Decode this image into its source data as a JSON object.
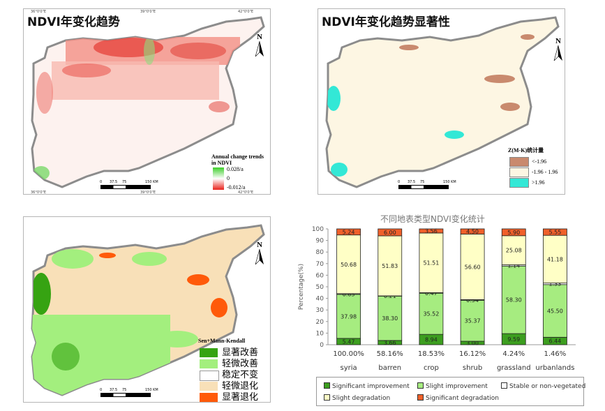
{
  "panels": {
    "trend": {
      "title": "NDVI年变化趋势",
      "legend_title": "Annual change trends in NDVI",
      "legend_max": "0.028/a",
      "legend_mid": "0",
      "legend_min": "-0.012/a"
    },
    "significance": {
      "title": "NDVI年变化趋势显著性",
      "legend_title": "Z(M-K)统计量",
      "legend_items": [
        "<-1.96",
        "-1.96 - 1.96",
        ">1.96"
      ],
      "colors": [
        "#c98a6e",
        "#fdf6e3",
        "#33e8d6"
      ]
    },
    "senmk": {
      "legend_title": "Sen+Mann-Kendall",
      "legend_items": [
        "显著改善",
        "轻微改善",
        "稳定不变",
        "轻微退化",
        "显著退化"
      ],
      "colors": [
        "#36a312",
        "#a3ef7e",
        "#ffffff",
        "#f8e0b8",
        "#ff5a0a"
      ]
    }
  },
  "map_common": {
    "north_label": "N",
    "scale_ticks": [
      "0",
      "37.5",
      "75",
      "150 KM"
    ],
    "lon_labels": [
      "36°0'0\"E",
      "39°0'0\"E",
      "42°0'0\"E"
    ],
    "lat_labels": [
      "36°0'0\"N",
      "33°0'0\"N"
    ]
  },
  "chart_data": {
    "type": "bar",
    "stacked": true,
    "title": "不同地表类型NDVI变化统计",
    "ylabel": "Percentage(%)",
    "ylim": [
      0,
      100
    ],
    "yticks": [
      0,
      10,
      20,
      30,
      40,
      50,
      60,
      70,
      80,
      90,
      100
    ],
    "categories": [
      "syria",
      "barren",
      "crop",
      "shrub",
      "grassland",
      "urbanlands"
    ],
    "category_shares": [
      "100.00%",
      "58.16%",
      "18.53%",
      "16.12%",
      "4.24%",
      "1.46%"
    ],
    "series": [
      {
        "name": "Significant improvement",
        "color": "#3c9e1f",
        "values": [
          5.47,
          3.66,
          8.94,
          3.0,
          9.59,
          6.44
        ],
        "labels": [
          "5.47",
          "3.66",
          "8.94",
          "3.00",
          "9.59",
          "6.44"
        ]
      },
      {
        "name": "Slight improvement",
        "color": "#a6ec80",
        "values": [
          37.98,
          38.3,
          35.52,
          35.37,
          58.3,
          45.5
        ],
        "labels": [
          "37.98",
          "38.30",
          "35.52",
          "35.37",
          "58.30",
          "45.50"
        ]
      },
      {
        "name": "Stable or non-vegetated",
        "color": "#ffffff",
        "values": [
          0.63,
          0.21,
          0.47,
          0.54,
          1.14,
          1.33
        ],
        "labels": [
          "0.63",
          "0.21",
          "0.47",
          "0.54",
          "1.14",
          "1.33"
        ]
      },
      {
        "name": "Slight degradation",
        "color": "#ffffc6",
        "values": [
          50.68,
          51.83,
          51.51,
          56.6,
          25.08,
          41.18
        ],
        "labels": [
          "50.68",
          "51.83",
          "51.51",
          "56.60",
          "25.08",
          "41.18"
        ]
      },
      {
        "name": "Significant degradation",
        "color": "#f0602a",
        "values": [
          5.24,
          6.0,
          3.56,
          4.5,
          5.9,
          5.55
        ],
        "labels": [
          "5.24",
          "6.00",
          "3.56",
          "4.50",
          "5.90",
          "5.55"
        ]
      }
    ]
  }
}
